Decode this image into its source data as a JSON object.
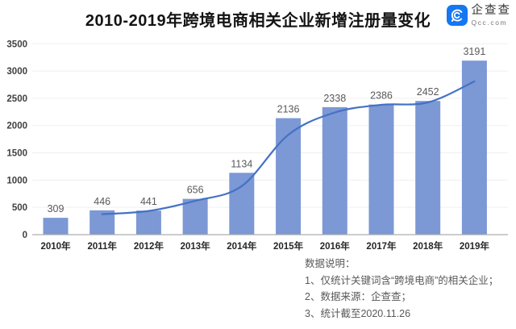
{
  "header": {
    "title": "2010-2019年跨境电商相关企业新增注册量变化",
    "logo": {
      "name": "企查查",
      "domain": "Qcc.com",
      "brand_color": "#1577F2"
    }
  },
  "chart_data": {
    "type": "bar",
    "title": "2010-2019年跨境电商相关企业新增注册量变化",
    "categories": [
      "2010年",
      "2011年",
      "2012年",
      "2013年",
      "2014年",
      "2015年",
      "2016年",
      "2017年",
      "2018年",
      "2019年"
    ],
    "series": [
      {
        "name": "bars",
        "type": "bar",
        "values": [
          309,
          446,
          441,
          656,
          1134,
          2136,
          2338,
          2386,
          2452,
          3191
        ]
      },
      {
        "name": "trend-line",
        "type": "line",
        "smooth": true,
        "start_category_index": 1,
        "values": [
          375,
          435,
          620,
          890,
          1830,
          2240,
          2380,
          2425,
          2810
        ]
      }
    ],
    "ylim": [
      0,
      3500
    ],
    "y_ticks": [
      0,
      500,
      1000,
      1500,
      2000,
      2500,
      3000,
      3500
    ],
    "grid": true,
    "legend_position": "none",
    "data_labels": true,
    "colors": {
      "bar": "#7C98D5",
      "line": "#4472C4",
      "grid": "#EFEFEF",
      "axis": "#ADADAD",
      "y_tick_label": "#404040",
      "x_tick_label": "#262626",
      "value_label": "#595959"
    }
  },
  "notes": {
    "title": "数据说明：",
    "items": [
      "1、仅统计关键词含“跨境电商”的相关企业；",
      "2、数据来源：企查查；",
      "3、统计截至2020.11.26"
    ]
  }
}
